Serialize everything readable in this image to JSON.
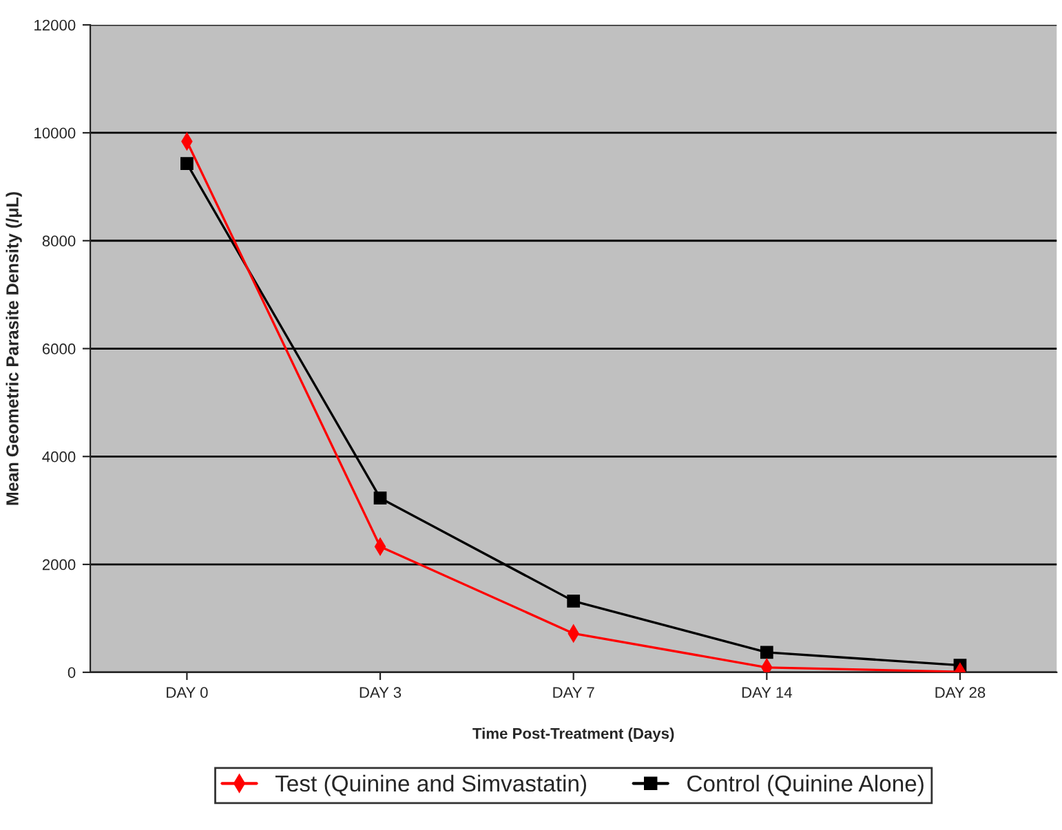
{
  "chart_data": {
    "type": "line",
    "xlabel": "Time Post-Treatment (Days)",
    "ylabel": "Mean Geometric Parasite Density (/μL)",
    "categories": [
      "DAY 0",
      "DAY 3",
      "DAY 7",
      "DAY 14",
      "DAY 28"
    ],
    "series": [
      {
        "name": "Test (Quinine and Simvastatin)",
        "color": "#ff0000",
        "marker": "diamond",
        "values": [
          9840,
          2330,
          720,
          90,
          10
        ]
      },
      {
        "name": "Control (Quinine Alone)",
        "color": "#000000",
        "marker": "square",
        "values": [
          9430,
          3230,
          1320,
          370,
          130
        ]
      }
    ],
    "ylim": [
      0,
      12000
    ],
    "yticks": [
      0,
      2000,
      4000,
      6000,
      8000,
      10000,
      12000
    ],
    "grid": "y",
    "legend": "bottom",
    "line_style": "solid"
  }
}
